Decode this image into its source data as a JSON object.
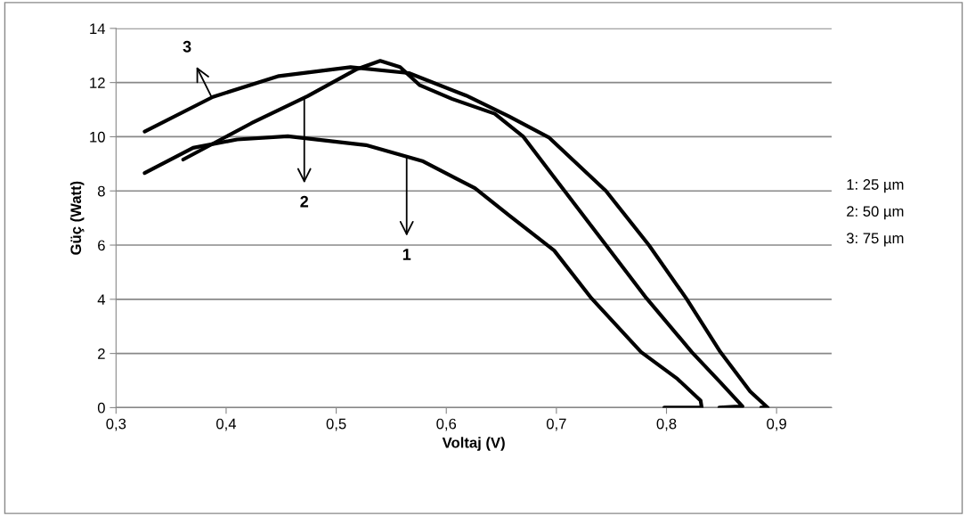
{
  "chart_data": {
    "type": "line",
    "xlabel": "Voltaj (V)",
    "ylabel": "Güç (Watt)",
    "xlim": [
      0.3,
      0.95
    ],
    "ylim": [
      0,
      14
    ],
    "xticks": [
      {
        "value": 0.3,
        "label": "0,3"
      },
      {
        "value": 0.4,
        "label": "0,4"
      },
      {
        "value": 0.5,
        "label": "0,5"
      },
      {
        "value": 0.6,
        "label": "0,6"
      },
      {
        "value": 0.7,
        "label": "0,7"
      },
      {
        "value": 0.8,
        "label": "0,8"
      },
      {
        "value": 0.9,
        "label": "0,9"
      }
    ],
    "yticks": [
      0,
      2,
      4,
      6,
      8,
      10,
      12,
      14
    ],
    "grid": "y",
    "marker": "none",
    "line_style": "solid",
    "series": [
      {
        "color": "#000000",
        "x": [
          0.326,
          0.37,
          0.41,
          0.456,
          0.527,
          0.579,
          0.626,
          0.657,
          0.698,
          0.732,
          0.777,
          0.81,
          0.831,
          0.832,
          0.798
        ],
        "values": [
          8.66,
          9.59,
          9.9,
          10.02,
          9.69,
          9.09,
          8.1,
          7.1,
          5.8,
          4.03,
          2.05,
          1.06,
          0.26,
          0,
          0
        ]
      },
      {
        "color": "#000000",
        "x": [
          0.361,
          0.423,
          0.474,
          0.519,
          0.54,
          0.558,
          0.576,
          0.605,
          0.644,
          0.67,
          0.698,
          0.745,
          0.782,
          0.823,
          0.849,
          0.869,
          0.848
        ],
        "values": [
          9.16,
          10.5,
          11.5,
          12.5,
          12.8,
          12.57,
          11.9,
          11.4,
          10.85,
          10.0,
          8.5,
          6.0,
          4.03,
          2.05,
          0.93,
          0.05,
          0
        ]
      },
      {
        "color": "#000000",
        "x": [
          0.326,
          0.388,
          0.448,
          0.513,
          0.566,
          0.618,
          0.657,
          0.693,
          0.745,
          0.784,
          0.818,
          0.849,
          0.876,
          0.892,
          0.886
        ],
        "values": [
          10.19,
          11.47,
          12.24,
          12.57,
          12.35,
          11.52,
          10.75,
          9.98,
          8.0,
          6.0,
          4.03,
          2.05,
          0.6,
          0,
          0
        ]
      }
    ],
    "annotations": [
      {
        "text": "1",
        "x": 0.564,
        "y": 9.26
      },
      {
        "text": "2",
        "x": 0.471,
        "y": 11.44
      },
      {
        "text": "3",
        "x": 0.387,
        "y": 11.45
      },
      "1: 25 µm",
      "2: 50 µm",
      "3: 75 µm"
    ]
  }
}
